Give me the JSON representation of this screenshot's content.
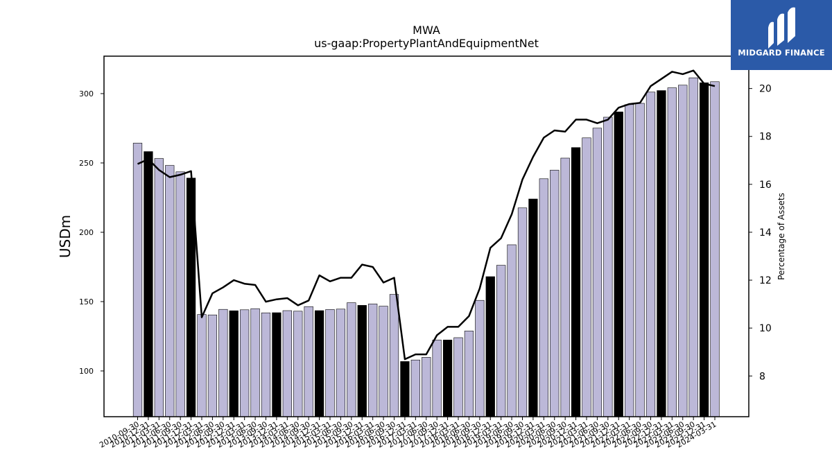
{
  "logo": {
    "text": "MIDGARD FINANCE"
  },
  "chart_data": {
    "type": "bar",
    "title": "MWA",
    "subtitle": "us-gaap:PropertyPlantAndEquipmentNet",
    "ylabel": "USDm",
    "y2label": "Percentage of Assets",
    "ylim": [
      67,
      327
    ],
    "y2lim": [
      6.3,
      21.35
    ],
    "yticks": [
      100,
      150,
      200,
      250,
      300
    ],
    "y2ticks": [
      8,
      10,
      12,
      14,
      16,
      18,
      20
    ],
    "categories": [
      "2010-09-30",
      "2010-12-31",
      "2011-03-31",
      "2011-06-30",
      "2011-09-30",
      "2011-12-31",
      "2012-03-31",
      "2012-06-30",
      "2012-09-30",
      "2012-12-31",
      "2013-03-31",
      "2013-06-30",
      "2013-09-30",
      "2013-12-31",
      "2014-03-31",
      "2014-06-30",
      "2014-09-30",
      "2014-12-31",
      "2015-03-31",
      "2015-06-30",
      "2015-09-30",
      "2015-12-31",
      "2016-03-31",
      "2016-06-30",
      "2016-09-30",
      "2016-12-31",
      "2017-03-31",
      "2017-06-30",
      "2017-09-30",
      "2017-12-31",
      "2018-03-31",
      "2018-06-30",
      "2018-09-30",
      "2018-12-31",
      "2019-03-31",
      "2019-06-30",
      "2019-09-30",
      "2019-12-31",
      "2020-03-31",
      "2020-06-30",
      "2020-09-30",
      "2020-12-31",
      "2021-03-31",
      "2021-06-30",
      "2021-09-30",
      "2021-12-31",
      "2022-03-31",
      "2022-06-30",
      "2022-09-30",
      "2022-12-31",
      "2023-03-31",
      "2023-06-30",
      "2023-09-30",
      "2023-12-31",
      "2024-03-31"
    ],
    "series": [
      {
        "values": [
          264.3,
          258.2,
          253.2,
          248.2,
          243.6,
          239.1,
          140.7,
          140.4,
          144.4,
          143.4,
          144.1,
          144.9,
          141.9,
          142.0,
          143.5,
          143.1,
          146.4,
          143.5,
          144.3,
          144.6,
          149.2,
          147.3,
          148.3,
          146.7,
          155.2,
          106.8,
          107.9,
          109.8,
          122.3,
          122.3,
          124.0,
          128.8,
          150.9,
          168.0,
          176.2,
          191.0,
          217.6,
          224.0,
          238.6,
          244.8,
          253.5,
          261.1,
          268.1,
          275.1,
          283.0,
          286.8,
          292.1,
          293.0,
          301.1,
          302.2,
          304.2,
          306.1,
          311.4,
          307.8,
          308.6
        ],
        "highlight": [
          false,
          true,
          false,
          false,
          false,
          true,
          false,
          false,
          false,
          true,
          false,
          false,
          false,
          true,
          false,
          false,
          false,
          true,
          false,
          false,
          false,
          true,
          false,
          false,
          false,
          true,
          false,
          false,
          false,
          true,
          false,
          false,
          false,
          true,
          false,
          false,
          false,
          true,
          false,
          false,
          false,
          true,
          false,
          false,
          false,
          true,
          false,
          false,
          false,
          true,
          false,
          false,
          false,
          true,
          false
        ]
      },
      {
        "name": "Percentage of Assets",
        "axis": "right",
        "type": "line",
        "values": [
          16.85,
          17.05,
          16.6,
          16.3,
          16.4,
          16.55,
          10.45,
          11.45,
          11.7,
          12.0,
          11.85,
          11.8,
          11.1,
          11.2,
          11.25,
          10.95,
          11.15,
          12.2,
          11.95,
          12.1,
          12.1,
          12.65,
          12.55,
          11.9,
          12.1,
          8.7,
          8.9,
          8.9,
          9.7,
          10.05,
          10.05,
          10.5,
          11.65,
          13.35,
          13.75,
          14.75,
          16.2,
          17.15,
          17.95,
          18.25,
          18.2,
          18.7,
          18.7,
          18.55,
          18.7,
          19.2,
          19.35,
          19.4,
          20.1,
          20.4,
          20.7,
          20.6,
          20.75,
          20.2,
          20.1
        ]
      }
    ],
    "colors": {
      "bar": "#bcb8d8",
      "bar_highlight": "#000000",
      "line": "#000000"
    }
  }
}
